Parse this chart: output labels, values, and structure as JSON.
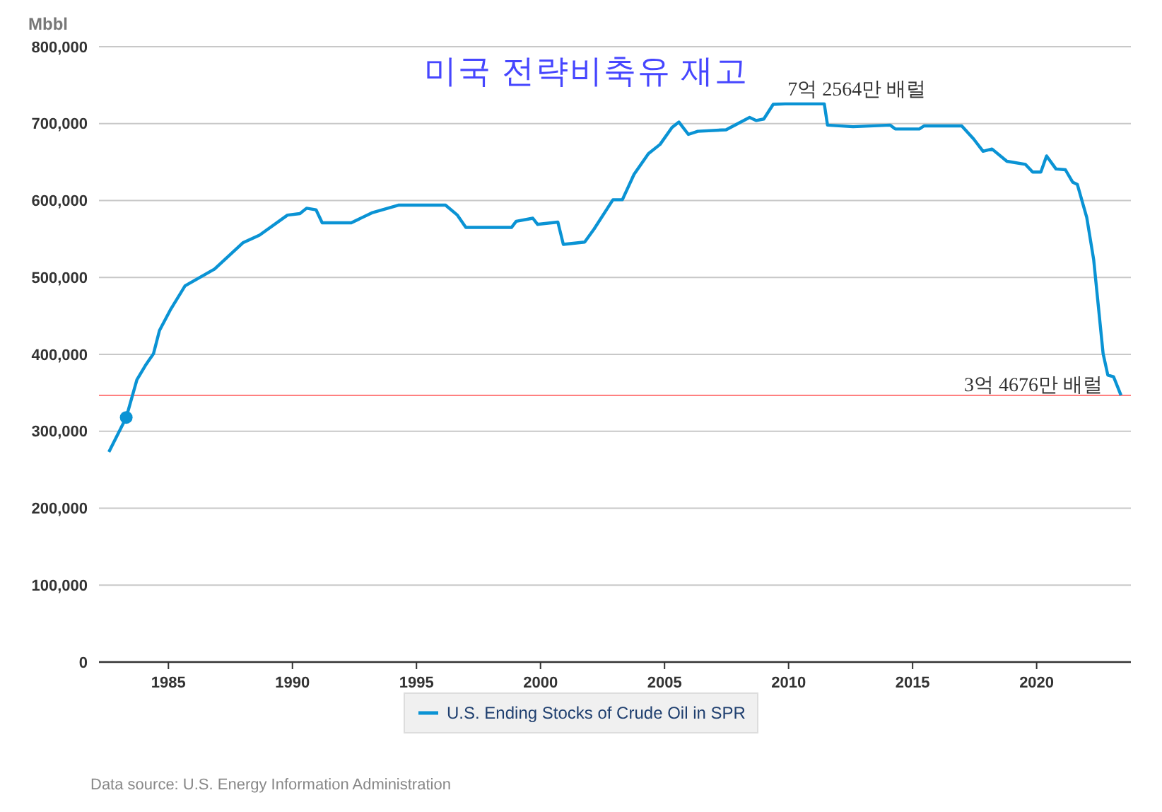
{
  "chart_data": {
    "type": "line",
    "title": "미국 전략비축유 재고",
    "ylabel": "Mbbl",
    "xlim": [
      1982.2,
      2023.8
    ],
    "xticks": [
      1985,
      1990,
      1995,
      2000,
      2005,
      2010,
      2015,
      2020
    ],
    "ylim": [
      0,
      800000
    ],
    "yticks": [
      {
        "value": 0,
        "label": "0"
      },
      {
        "value": 100000,
        "label": "100,000"
      },
      {
        "value": 200000,
        "label": "200,000"
      },
      {
        "value": 300000,
        "label": "300,000"
      },
      {
        "value": 400000,
        "label": "400,000"
      },
      {
        "value": 500000,
        "label": "500,000"
      },
      {
        "value": 600000,
        "label": "600,000"
      },
      {
        "value": 700000,
        "label": "700,000"
      },
      {
        "value": 800000,
        "label": "800,000"
      }
    ],
    "grid": "y",
    "legend": "bottom",
    "series": [
      {
        "name": "U.S. Ending Stocks of Crude Oil in SPR",
        "color": "#0a93d4",
        "x": [
          1982.6,
          1983.3,
          1983.73,
          1984.1,
          1984.4,
          1984.64,
          1985.1,
          1985.67,
          1986.86,
          1988.0,
          1988.67,
          1989.8,
          1990.3,
          1990.57,
          1990.95,
          1991.2,
          1992.37,
          1993.2,
          1994.27,
          1996.17,
          1996.65,
          1996.99,
          1998.83,
          1999.02,
          1999.69,
          1999.88,
          2000.7,
          2000.92,
          2001.78,
          2002.16,
          2002.92,
          2003.3,
          2003.77,
          2004.35,
          2004.82,
          2005.3,
          2005.58,
          2005.96,
          2006.34,
          2007.48,
          2008.43,
          2008.7,
          2009.0,
          2009.38,
          2009.86,
          2011.44,
          2011.57,
          2012.6,
          2014.1,
          2014.3,
          2015.27,
          2015.46,
          2016.98,
          2017.46,
          2017.84,
          2018.2,
          2018.8,
          2019.55,
          2019.84,
          2020.17,
          2020.4,
          2020.78,
          2021.16,
          2021.45,
          2021.64,
          2022.02,
          2022.3,
          2022.68,
          2022.87,
          2023.1,
          2023.4
        ],
        "values": [
          273000,
          318000,
          367000,
          387000,
          401000,
          431000,
          459000,
          489000,
          511000,
          545000,
          555000,
          581000,
          583000,
          590000,
          588000,
          571000,
          571000,
          584000,
          594000,
          594000,
          581000,
          565000,
          565000,
          573000,
          577000,
          569000,
          572000,
          543000,
          546000,
          563000,
          601000,
          601000,
          634000,
          661000,
          673000,
          695000,
          702000,
          686000,
          690000,
          692000,
          708000,
          704000,
          706000,
          725000,
          725640,
          725640,
          698000,
          696000,
          698000,
          693000,
          693000,
          697000,
          697000,
          680000,
          664000,
          667000,
          651000,
          647000,
          637000,
          637000,
          658000,
          641000,
          640000,
          624000,
          621000,
          578000,
          523000,
          401000,
          373000,
          371000,
          346760
        ]
      },
      {
        "type": "scatter",
        "marker": "circle",
        "color": "#0a93d4",
        "x": [
          1983.3
        ],
        "values": [
          318000
        ]
      }
    ],
    "ref_lines": [
      {
        "axis": "y",
        "value": 346760,
        "label": "3억 4676만 배럴",
        "color": "#ff8080"
      }
    ],
    "annotations": [
      {
        "text": "7억 2564만 배럴",
        "x": 2011.44,
        "y": 725640
      },
      "Data source: U.S. Energy Information Administration"
    ]
  }
}
